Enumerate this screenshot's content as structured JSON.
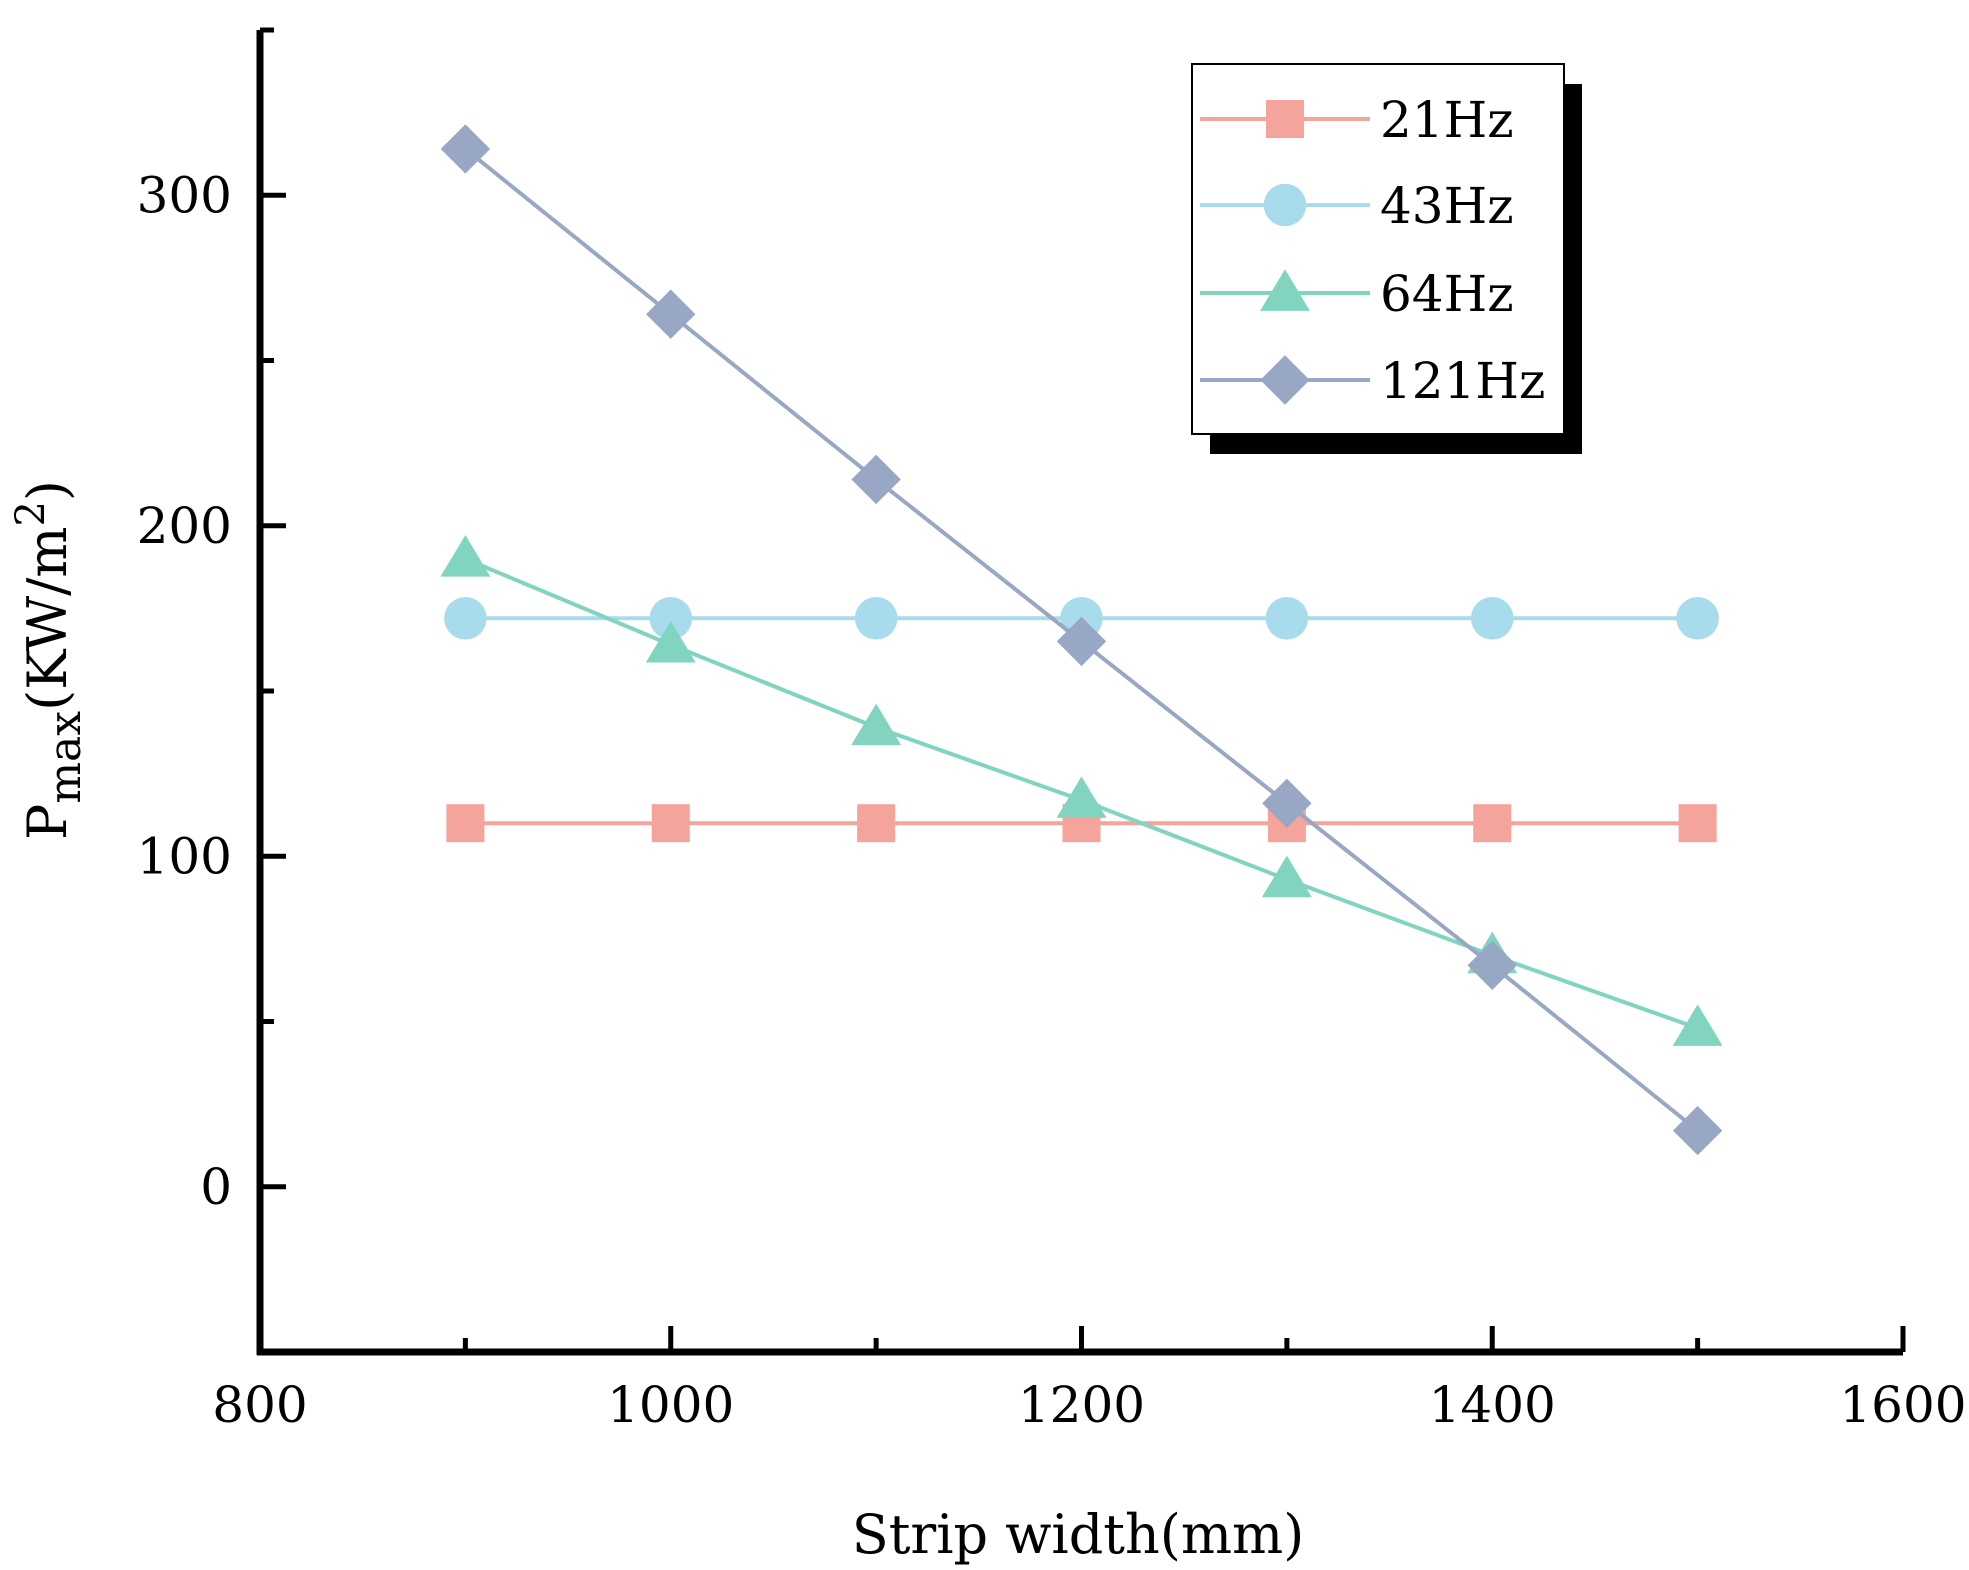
{
  "chart_data": {
    "type": "line",
    "title": "",
    "xlabel": "Strip width(mm)",
    "ylabel": {
      "main": "P",
      "subscript": "max",
      "unit_open": "(KW/m",
      "superscript": "2",
      "unit_close": ")"
    },
    "xlim": [
      800,
      1600
    ],
    "ylim": [
      -50,
      350
    ],
    "xticks": [
      800,
      1000,
      1200,
      1400,
      1600
    ],
    "xtick_labels": [
      "800",
      "1000",
      "1200",
      "1400",
      "1600"
    ],
    "yticks": [
      0,
      100,
      200,
      300
    ],
    "ytick_labels": [
      "0",
      "100",
      "200",
      "300"
    ],
    "grid": false,
    "legend_position": "top-right",
    "x": [
      900,
      1000,
      1100,
      1200,
      1300,
      1400,
      1500
    ],
    "series": [
      {
        "name": "21Hz",
        "marker": "square",
        "color": "#f4a49a",
        "values": [
          110,
          110,
          110,
          110,
          110,
          110,
          110
        ]
      },
      {
        "name": "43Hz",
        "marker": "circle",
        "color": "#a8dcec",
        "values": [
          172,
          172,
          172,
          172,
          172,
          172,
          172
        ]
      },
      {
        "name": "64Hz",
        "marker": "triangle",
        "color": "#80d4c0",
        "values": [
          190,
          164,
          139,
          117,
          93,
          70,
          48
        ]
      },
      {
        "name": "121Hz",
        "marker": "diamond",
        "color": "#98a8c4",
        "values": [
          314,
          264,
          214,
          165,
          116,
          67,
          17
        ]
      }
    ]
  }
}
